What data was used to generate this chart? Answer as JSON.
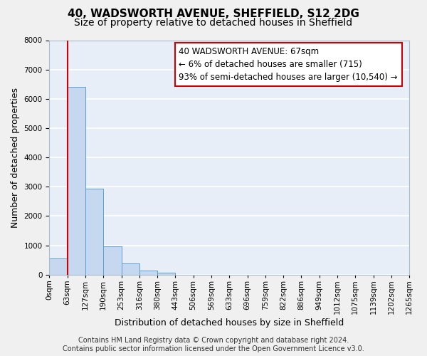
{
  "title": "40, WADSWORTH AVENUE, SHEFFIELD, S12 2DG",
  "subtitle": "Size of property relative to detached houses in Sheffield",
  "xlabel": "Distribution of detached houses by size in Sheffield",
  "ylabel": "Number of detached properties",
  "bar_values": [
    550,
    6400,
    2930,
    975,
    375,
    150,
    60,
    0,
    0,
    0,
    0,
    0,
    0,
    0,
    0,
    0,
    0,
    0,
    0
  ],
  "bin_labels": [
    "0sqm",
    "63sqm",
    "127sqm",
    "190sqm",
    "253sqm",
    "316sqm",
    "380sqm",
    "443sqm",
    "506sqm",
    "569sqm",
    "633sqm",
    "696sqm",
    "759sqm",
    "822sqm",
    "886sqm",
    "949sqm",
    "1012sqm",
    "1075sqm",
    "1139sqm",
    "1202sqm",
    "1265sqm"
  ],
  "bar_color": "#c5d8f0",
  "bar_edge_color": "#5a9fd4",
  "vline_x": 1,
  "vline_color": "#cc0000",
  "annotation_line1": "40 WADSWORTH AVENUE: 67sqm",
  "annotation_line2": "← 6% of detached houses are smaller (715)",
  "annotation_line3": "93% of semi-detached houses are larger (10,540) →",
  "annotation_box_color": "#cc0000",
  "ylim": [
    0,
    8000
  ],
  "yticks": [
    0,
    1000,
    2000,
    3000,
    4000,
    5000,
    6000,
    7000,
    8000
  ],
  "footer_line1": "Contains HM Land Registry data © Crown copyright and database right 2024.",
  "footer_line2": "Contains public sector information licensed under the Open Government Licence v3.0.",
  "bg_color": "#e8eef8",
  "plot_bg_color": "#e8eef8",
  "grid_color": "#ffffff",
  "title_fontsize": 11,
  "subtitle_fontsize": 10,
  "axis_label_fontsize": 9,
  "tick_fontsize": 7.5,
  "annotation_fontsize": 8.5,
  "footer_fontsize": 7
}
